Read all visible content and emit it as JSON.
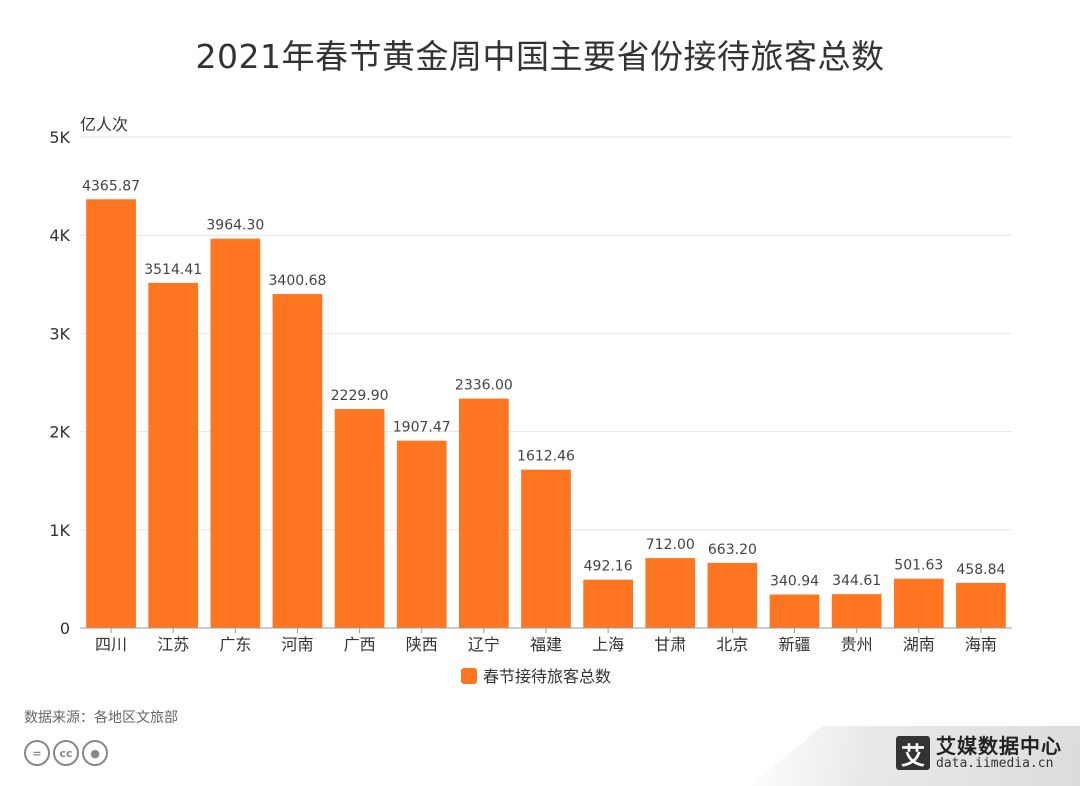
{
  "title": "2021年春节黄金周中国主要省份接待旅客总数",
  "source": "数据来源：各地区文旅部",
  "brand": {
    "logo_char": "艾",
    "name": "艾媒数据中心",
    "url": "data.iimedia.cn"
  },
  "license_icons": [
    "cc-equal-icon",
    "cc-icon",
    "cc-by-person-icon"
  ],
  "chart_data": {
    "type": "bar",
    "title": "2021年春节黄金周中国主要省份接待旅客总数",
    "ylabel": "亿人次",
    "xlabel": "",
    "ylim": [
      0,
      5000
    ],
    "yticks": [
      0,
      1000,
      2000,
      3000,
      4000,
      5000
    ],
    "ytick_labels": [
      "0",
      "1K",
      "2K",
      "3K",
      "4K",
      "5K"
    ],
    "grid": true,
    "legend_position": "bottom",
    "categories": [
      "四川",
      "江苏",
      "广东",
      "河南",
      "广西",
      "陕西",
      "辽宁",
      "福建",
      "上海",
      "甘肃",
      "北京",
      "新疆",
      "贵州",
      "湖南",
      "海南"
    ],
    "series": [
      {
        "name": "春节接待旅客总数",
        "color": "#ff7520",
        "values": [
          4365.87,
          3514.41,
          3964.3,
          3400.68,
          2229.9,
          1907.47,
          2336.0,
          1612.46,
          492.16,
          712.0,
          663.2,
          340.94,
          344.61,
          501.63,
          458.84
        ],
        "labels": [
          "4365.87",
          "3514.41",
          "3964.30",
          "3400.68",
          "2229.90",
          "1907.47",
          "2336.00",
          "1612.46",
          "492.16",
          "712.00",
          "663.20",
          "340.94",
          "344.61",
          "501.63",
          "458.84"
        ]
      }
    ]
  }
}
